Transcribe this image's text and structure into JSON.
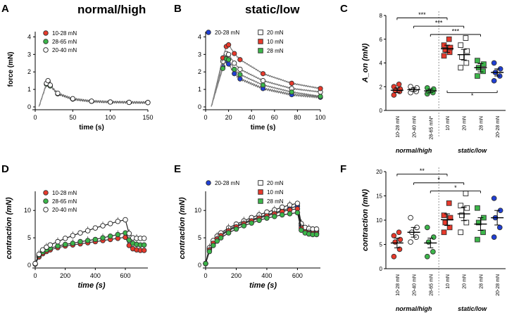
{
  "panel_letters": {
    "A": "A",
    "B": "B",
    "C": "C",
    "D": "D",
    "E": "E",
    "F": "F"
  },
  "colors": {
    "red": "#e8392b",
    "green": "#3cb64a",
    "blue": "#1f3fd6",
    "white": "#ffffff",
    "trace": "#111111",
    "fit": "#888888"
  },
  "chart_data": [
    {
      "panel": "A",
      "type": "line",
      "title": "normal/high",
      "xlabel": "time (s)",
      "ylabel": "force (mN)",
      "xlim": [
        0,
        150
      ],
      "ylim": [
        0,
        4.3
      ],
      "xticks": [
        "0",
        "50",
        "100",
        "150"
      ],
      "yticks": [
        "0",
        "1",
        "2",
        "3",
        "4"
      ],
      "legend": [
        "10-28 mN",
        "28-65 mN",
        "20-40 mN"
      ],
      "series": [
        {
          "name": "10-28 mN",
          "color": "red",
          "x": [
            5,
            15,
            17,
            20,
            30,
            50,
            75,
            100,
            125,
            150
          ],
          "y": [
            0.02,
            1.3,
            1.45,
            1.2,
            0.75,
            0.45,
            0.32,
            0.28,
            0.26,
            0.25
          ]
        },
        {
          "name": "28-65 mN",
          "color": "green",
          "x": [
            5,
            15,
            17,
            20,
            30,
            50,
            75,
            100,
            125,
            150
          ],
          "y": [
            0.02,
            1.3,
            1.45,
            1.2,
            0.75,
            0.45,
            0.32,
            0.28,
            0.26,
            0.25
          ]
        },
        {
          "name": "20-40 mN",
          "color": "white",
          "x": [
            5,
            15,
            17,
            20,
            30,
            50,
            75,
            100,
            125,
            150
          ],
          "y": [
            0.02,
            1.35,
            1.5,
            1.25,
            0.78,
            0.47,
            0.33,
            0.28,
            0.26,
            0.25
          ]
        }
      ]
    },
    {
      "panel": "B",
      "type": "line",
      "title": "static/low",
      "xlabel": "time (s)",
      "ylabel": "",
      "xlim": [
        0,
        100
      ],
      "ylim": [
        0,
        4.3
      ],
      "xticks": [
        "0",
        "20",
        "40",
        "60",
        "80",
        "100"
      ],
      "yticks": [
        "0",
        "1",
        "2",
        "3",
        "4"
      ],
      "legend": [
        "20-28 mN",
        "20 mN",
        "10 mN",
        "28 mN"
      ],
      "series": [
        {
          "name": "20-28 mN",
          "color": "blue",
          "x": [
            5,
            15,
            18,
            20,
            25,
            30,
            50,
            75,
            100
          ],
          "y": [
            0.02,
            2.3,
            2.65,
            2.45,
            1.9,
            1.6,
            1.05,
            0.7,
            0.55
          ]
        },
        {
          "name": "20 mN",
          "color": "white",
          "x": [
            5,
            15,
            18,
            20,
            25,
            30,
            50,
            75,
            100
          ],
          "y": [
            0.02,
            2.6,
            3.05,
            3.0,
            2.5,
            2.15,
            1.5,
            1.05,
            0.85
          ]
        },
        {
          "name": "10 mN",
          "color": "red",
          "x": [
            5,
            15,
            18,
            20,
            25,
            30,
            50,
            75,
            100
          ],
          "y": [
            0.02,
            2.8,
            3.45,
            3.55,
            3.05,
            2.7,
            1.9,
            1.35,
            1.05
          ]
        },
        {
          "name": "28 mN",
          "color": "green",
          "x": [
            5,
            15,
            18,
            20,
            25,
            30,
            50,
            75,
            100
          ],
          "y": [
            0.02,
            2.2,
            2.75,
            2.7,
            2.15,
            1.85,
            1.25,
            0.85,
            0.6
          ]
        }
      ]
    },
    {
      "panel": "C",
      "type": "scatter",
      "ylabel": "A_on (mN)",
      "ylim": [
        0,
        8
      ],
      "yticks": [
        "0",
        "2",
        "4",
        "6",
        "8"
      ],
      "categories": [
        "10-28 mN",
        "20-40 mN",
        "28-65 mN*",
        "10 mN",
        "20 mN",
        "28 mN",
        "20-28 mN"
      ],
      "groups": [
        "normal/high",
        "static/low"
      ],
      "series": [
        {
          "name": "10-28 mN",
          "color": "red",
          "shape": "circle",
          "mean": 1.7,
          "sem": 0.2,
          "points": [
            1.3,
            1.6,
            1.7,
            1.8,
            2.0,
            2.2
          ]
        },
        {
          "name": "20-40 mN",
          "color": "white",
          "shape": "circle",
          "mean": 1.75,
          "sem": 0.15,
          "points": [
            1.5,
            1.6,
            1.8,
            1.9,
            2.0
          ]
        },
        {
          "name": "28-65 mN*",
          "color": "green",
          "shape": "circle",
          "mean": 1.65,
          "sem": 0.15,
          "points": [
            1.4,
            1.5,
            1.6,
            1.8,
            1.9
          ]
        },
        {
          "name": "10 mN",
          "color": "red",
          "shape": "square",
          "mean": 5.2,
          "sem": 0.3,
          "points": [
            4.6,
            4.9,
            5.1,
            5.3,
            5.5,
            6.0
          ]
        },
        {
          "name": "20 mN",
          "color": "white",
          "shape": "square",
          "mean": 4.7,
          "sem": 0.45,
          "points": [
            3.6,
            4.0,
            4.5,
            5.0,
            5.5,
            6.1
          ]
        },
        {
          "name": "28 mN",
          "color": "green",
          "shape": "square",
          "mean": 3.6,
          "sem": 0.35,
          "points": [
            2.9,
            3.3,
            3.6,
            3.9,
            4.2
          ]
        },
        {
          "name": "20-28 mN",
          "color": "blue",
          "shape": "circle",
          "mean": 3.2,
          "sem": 0.3,
          "points": [
            2.5,
            2.9,
            3.2,
            3.5,
            4.0
          ]
        }
      ],
      "significance": [
        {
          "from": 0,
          "to": 3,
          "label": "***",
          "y": 7.8
        },
        {
          "from": 1,
          "to": 4,
          "label": "***",
          "y": 7.1
        },
        {
          "from": 2,
          "to": 5,
          "label": "***",
          "y": 6.4
        },
        {
          "from": 3,
          "to": 6,
          "label": "*",
          "y": 1.5
        }
      ]
    },
    {
      "panel": "D",
      "type": "line",
      "xlabel": "time (s)",
      "ylabel": "contraction (mN)",
      "xlim": [
        0,
        750
      ],
      "ylim": [
        0,
        13.5
      ],
      "xticks": [
        "0",
        "200",
        "400",
        "600"
      ],
      "yticks": [
        "0",
        "5",
        "10"
      ],
      "legend": [
        "10-28 mN",
        "28-65 mN",
        "20-40 mN"
      ],
      "series": [
        {
          "name": "10-28 mN",
          "color": "red",
          "x": [
            0,
            25,
            50,
            75,
            100,
            150,
            200,
            250,
            300,
            350,
            400,
            450,
            500,
            550,
            600,
            625,
            650,
            675,
            700,
            725
          ],
          "y": [
            0.2,
            1.5,
            2.1,
            2.5,
            2.8,
            3.2,
            3.5,
            3.7,
            3.9,
            4.1,
            4.3,
            4.5,
            4.7,
            4.9,
            5.1,
            3.6,
            3.0,
            2.8,
            2.7,
            2.7
          ]
        },
        {
          "name": "28-65 mN",
          "color": "green",
          "x": [
            0,
            25,
            50,
            75,
            100,
            150,
            200,
            250,
            300,
            350,
            400,
            450,
            500,
            550,
            600,
            625,
            650,
            675,
            700,
            725
          ],
          "y": [
            0.3,
            1.8,
            2.4,
            2.8,
            3.1,
            3.5,
            3.8,
            4.0,
            4.3,
            4.5,
            4.7,
            5.0,
            5.3,
            5.6,
            5.9,
            4.6,
            4.0,
            3.8,
            3.7,
            3.7
          ]
        },
        {
          "name": "20-40 mN",
          "color": "white",
          "x": [
            0,
            25,
            50,
            75,
            100,
            150,
            200,
            250,
            300,
            350,
            400,
            450,
            500,
            550,
            600,
            625,
            650,
            675,
            700,
            725
          ],
          "y": [
            0.3,
            2.0,
            2.8,
            3.3,
            3.7,
            4.3,
            4.9,
            5.4,
            5.9,
            6.3,
            6.8,
            7.2,
            7.6,
            8.0,
            8.3,
            5.8,
            5.0,
            4.9,
            4.9,
            4.9
          ]
        }
      ]
    },
    {
      "panel": "E",
      "type": "line",
      "xlabel": "time (s)",
      "ylabel": "contraction (mN)",
      "xlim": [
        0,
        750
      ],
      "ylim": [
        0,
        13.5
      ],
      "xticks": [
        "0",
        "200",
        "400",
        "600"
      ],
      "yticks": [
        "0",
        "5",
        "10"
      ],
      "legend": [
        "20-28 mN",
        "20 mN",
        "10 mN",
        "28 mN"
      ],
      "series": [
        {
          "name": "20-28 mN",
          "color": "blue",
          "x": [
            0,
            25,
            50,
            75,
            100,
            150,
            200,
            250,
            300,
            350,
            400,
            450,
            500,
            550,
            600,
            625,
            650,
            675,
            700,
            725
          ],
          "y": [
            0.3,
            3.0,
            4.2,
            5.0,
            5.6,
            6.5,
            7.2,
            7.8,
            8.3,
            8.8,
            9.2,
            9.6,
            10.0,
            10.4,
            10.8,
            7.2,
            6.5,
            6.3,
            6.2,
            6.2
          ]
        },
        {
          "name": "20 mN",
          "color": "white",
          "x": [
            0,
            25,
            50,
            75,
            100,
            150,
            200,
            250,
            300,
            350,
            400,
            450,
            500,
            550,
            600,
            625,
            650,
            675,
            700,
            725
          ],
          "y": [
            0.3,
            3.2,
            4.5,
            5.3,
            5.9,
            6.8,
            7.5,
            8.1,
            8.7,
            9.2,
            9.7,
            10.1,
            10.6,
            11.0,
            11.3,
            7.6,
            6.9,
            6.7,
            6.6,
            6.6
          ]
        },
        {
          "name": "10 mN",
          "color": "red",
          "x": [
            0,
            25,
            50,
            75,
            100,
            150,
            200,
            250,
            300,
            350,
            400,
            450,
            500,
            550,
            600,
            625,
            650,
            675,
            700,
            725
          ],
          "y": [
            0.3,
            2.8,
            4.0,
            4.8,
            5.4,
            6.3,
            7.0,
            7.6,
            8.1,
            8.6,
            9.0,
            9.4,
            9.8,
            10.1,
            10.3,
            6.8,
            6.1,
            5.9,
            5.8,
            5.8
          ]
        },
        {
          "name": "28 mN",
          "color": "green",
          "x": [
            0,
            25,
            50,
            75,
            100,
            150,
            200,
            250,
            300,
            350,
            400,
            450,
            500,
            550,
            600,
            625,
            650,
            675,
            700,
            725
          ],
          "y": [
            0.3,
            2.5,
            3.6,
            4.4,
            5.0,
            5.9,
            6.6,
            7.2,
            7.7,
            8.2,
            8.6,
            8.9,
            9.2,
            9.4,
            9.6,
            6.4,
            5.9,
            5.7,
            5.6,
            5.6
          ]
        }
      ]
    },
    {
      "panel": "F",
      "type": "scatter",
      "ylabel": "contraction (mN)",
      "ylim": [
        0,
        20
      ],
      "yticks": [
        "0",
        "5",
        "10",
        "15",
        "20"
      ],
      "categories": [
        "10-28 mN",
        "20-40 mN",
        "28-65 mN",
        "10 mN",
        "20 mN",
        "28 mN",
        "20-28 mN"
      ],
      "groups": [
        "normal/high",
        "static/low"
      ],
      "series": [
        {
          "name": "10-28 mN",
          "color": "red",
          "shape": "circle",
          "mean": 5.3,
          "sem": 1.0,
          "points": [
            2.5,
            4.0,
            5.5,
            6.0,
            6.8,
            7.5
          ]
        },
        {
          "name": "20-40 mN",
          "color": "white",
          "shape": "circle",
          "mean": 7.5,
          "sem": 1.0,
          "points": [
            5.5,
            6.5,
            7.5,
            8.5,
            10.5
          ]
        },
        {
          "name": "28-65 mN",
          "color": "green",
          "shape": "circle",
          "mean": 5.3,
          "sem": 1.0,
          "points": [
            2.5,
            3.5,
            5.5,
            6.5,
            8.5
          ]
        },
        {
          "name": "10 mN",
          "color": "red",
          "shape": "square",
          "mean": 10.1,
          "sem": 1.2,
          "points": [
            7.5,
            8.5,
            9.5,
            10.5,
            11.0,
            13.5
          ]
        },
        {
          "name": "20 mN",
          "color": "white",
          "shape": "square",
          "mean": 11.3,
          "sem": 1.4,
          "points": [
            7.5,
            9.5,
            11.0,
            12.5,
            13.0,
            15.5
          ]
        },
        {
          "name": "28 mN",
          "color": "green",
          "shape": "square",
          "mean": 9.2,
          "sem": 1.3,
          "points": [
            6.0,
            7.5,
            9.5,
            10.5,
            12.5
          ]
        },
        {
          "name": "20-28 mN",
          "color": "blue",
          "shape": "circle",
          "mean": 10.5,
          "sem": 1.5,
          "points": [
            6.5,
            8.5,
            10.5,
            12.0,
            14.5
          ]
        }
      ],
      "significance": [
        {
          "from": 0,
          "to": 3,
          "label": "**",
          "y": 19.5
        },
        {
          "from": 1,
          "to": 4,
          "label": "*",
          "y": 17.7
        },
        {
          "from": 2,
          "to": 5,
          "label": "*",
          "y": 16.0
        }
      ]
    }
  ]
}
